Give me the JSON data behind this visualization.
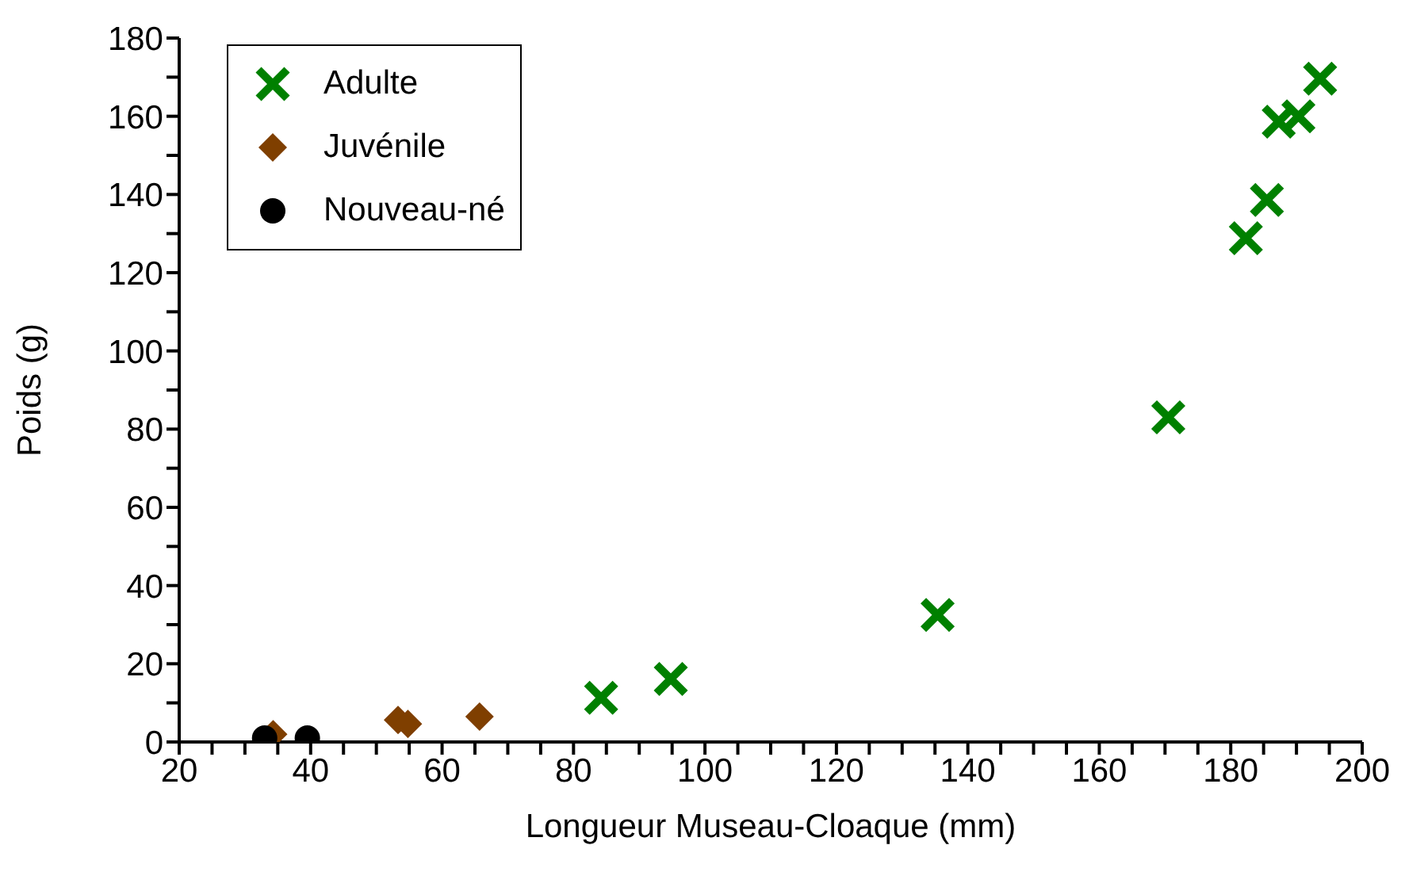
{
  "chart_data": {
    "type": "scatter",
    "xlabel": "Longueur Museau-Cloaque (mm)",
    "ylabel": "Poids (g)",
    "xlim": [
      20,
      200
    ],
    "xticks": [
      20,
      {
        "value": 25,
        "label": null
      },
      {
        "value": 30,
        "label": null
      },
      {
        "value": 35,
        "label": null
      },
      40,
      {
        "value": 45,
        "label": null
      },
      {
        "value": 50,
        "label": null
      },
      {
        "value": 55,
        "label": null
      },
      60,
      {
        "value": 65,
        "label": null
      },
      {
        "value": 70,
        "label": null
      },
      {
        "value": 75,
        "label": null
      },
      80,
      {
        "value": 85,
        "label": null
      },
      {
        "value": 90,
        "label": null
      },
      {
        "value": 95,
        "label": null
      },
      100,
      {
        "value": 105,
        "label": null
      },
      {
        "value": 110,
        "label": null
      },
      {
        "value": 115,
        "label": null
      },
      120,
      {
        "value": 125,
        "label": null
      },
      {
        "value": 130,
        "label": null
      },
      {
        "value": 135,
        "label": null
      },
      140,
      {
        "value": 145,
        "label": null
      },
      {
        "value": 150,
        "label": null
      },
      {
        "value": 155,
        "label": null
      },
      160,
      {
        "value": 165,
        "label": null
      },
      {
        "value": 170,
        "label": null
      },
      {
        "value": 175,
        "label": null
      },
      180,
      {
        "value": 185,
        "label": null
      },
      {
        "value": 190,
        "label": null
      },
      {
        "value": 195,
        "label": null
      },
      200
    ],
    "ylim": [
      0,
      180
    ],
    "yticks": [
      0,
      {
        "value": 10,
        "label": null
      },
      20,
      {
        "value": 30,
        "label": null
      },
      40,
      {
        "value": 50,
        "label": null
      },
      60,
      {
        "value": 70,
        "label": null
      },
      80,
      {
        "value": 90,
        "label": null
      },
      100,
      {
        "value": 110,
        "label": null
      },
      120,
      {
        "value": 130,
        "label": null
      },
      140,
      {
        "value": 150,
        "label": null
      },
      160,
      {
        "value": 170,
        "label": null
      },
      180
    ],
    "grid": false,
    "legend": "top left",
    "series": [
      {
        "name": "Adulte",
        "color": "#008000",
        "marker": "cross",
        "x": [
          84.2,
          94.8,
          135.4,
          170.5,
          182.3,
          185.5,
          187.3,
          190.3,
          193.6
        ],
        "values": [
          11.3,
          16.1,
          32.5,
          83,
          128.8,
          138.6,
          158.6,
          160,
          169.6
        ]
      },
      {
        "name": "Juvénile",
        "color": "#7f3f00",
        "marker": "diamond",
        "x": [
          34.3,
          53.3,
          54.8,
          65.7
        ],
        "values": [
          2,
          5.6,
          4.6,
          6.5
        ]
      },
      {
        "name": "Nouveau-né",
        "color": "#000000",
        "marker": "circle",
        "x": [
          33,
          39.5
        ],
        "values": [
          1,
          1
        ]
      }
    ]
  }
}
